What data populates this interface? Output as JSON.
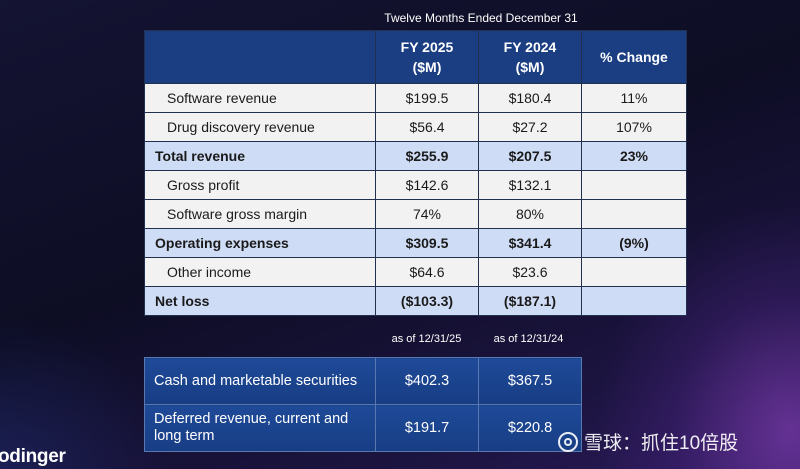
{
  "caption": "Twelve Months Ended December 31",
  "income_table": {
    "headers": {
      "label": "",
      "fy2025": "FY 2025",
      "fy2025_unit": "($M)",
      "fy2024": "FY 2024",
      "fy2024_unit": "($M)",
      "change": "% Change"
    },
    "rows": [
      {
        "label": "Software revenue",
        "fy2025": "$199.5",
        "fy2024": "$180.4",
        "change": "11%"
      },
      {
        "label": "Drug discovery revenue",
        "fy2025": "$56.4",
        "fy2024": "$27.2",
        "change": "107%"
      },
      {
        "label": "Total revenue",
        "fy2025": "$255.9",
        "fy2024": "$207.5",
        "change": "23%"
      },
      {
        "label": "Gross profit",
        "fy2025": "$142.6",
        "fy2024": "$132.1",
        "change": ""
      },
      {
        "label": "Software gross margin",
        "fy2025": "74%",
        "fy2024": "80%",
        "change": ""
      },
      {
        "label": "Operating expenses",
        "fy2025": "$309.5",
        "fy2024": "$341.4",
        "change": "(9%)"
      },
      {
        "label": "Other income",
        "fy2025": "$64.6",
        "fy2024": "$23.6",
        "change": ""
      },
      {
        "label": "Net loss",
        "fy2025": "($103.3)",
        "fy2024": "($187.1)",
        "change": ""
      }
    ]
  },
  "balance_table": {
    "asof_2025": "as of 12/31/25",
    "asof_2024": "as of 12/31/24",
    "rows": [
      {
        "label": "Cash and marketable securities",
        "fy2025": "$402.3",
        "fy2024": "$367.5"
      },
      {
        "label": "Deferred revenue, current and long term",
        "fy2025": "$191.7",
        "fy2024": "$220.8"
      }
    ]
  },
  "logo_text": "odinger",
  "watermark": "雪球：抓住10倍股"
}
